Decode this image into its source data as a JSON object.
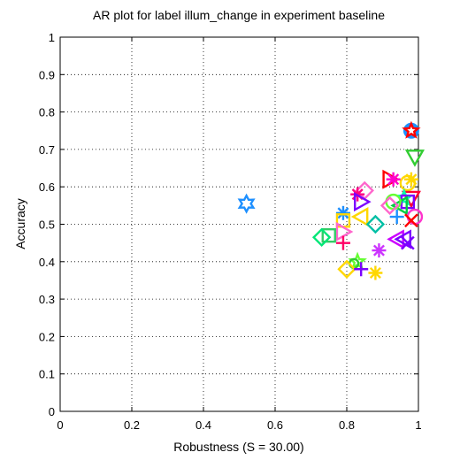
{
  "chart_data": {
    "type": "scatter",
    "title": "AR plot for label illum_change in experiment baseline",
    "xlabel": "Robustness (S = 30.00)",
    "ylabel": "Accuracy",
    "xlim": [
      0,
      1
    ],
    "ylim": [
      0,
      1
    ],
    "x_ticks": [
      "0",
      "0.2",
      "0.4",
      "0.6",
      "0.8",
      "1"
    ],
    "y_ticks": [
      "0",
      "0.1",
      "0.2",
      "0.3",
      "0.4",
      "0.5",
      "0.6",
      "0.7",
      "0.8",
      "0.9",
      "1"
    ],
    "grid": true,
    "points": [
      {
        "x": 0.98,
        "y": 0.75,
        "marker": "circle-thick",
        "color": "#1E90FF"
      },
      {
        "x": 0.98,
        "y": 0.75,
        "marker": "pentagram",
        "color": "#FF0000"
      },
      {
        "x": 0.99,
        "y": 0.68,
        "marker": "triangle-down",
        "color": "#32CD32"
      },
      {
        "x": 0.98,
        "y": 0.62,
        "marker": "asterisk",
        "color": "#FFD700"
      },
      {
        "x": 0.97,
        "y": 0.61,
        "marker": "circle",
        "color": "#FFD700"
      },
      {
        "x": 0.92,
        "y": 0.62,
        "marker": "triangle-right",
        "color": "#FF0000"
      },
      {
        "x": 0.93,
        "y": 0.62,
        "marker": "asterisk",
        "color": "#FF00CC"
      },
      {
        "x": 0.98,
        "y": 0.57,
        "marker": "triangle-down",
        "color": "#FF0033"
      },
      {
        "x": 0.96,
        "y": 0.57,
        "marker": "pentagram",
        "color": "#00FFAA"
      },
      {
        "x": 0.97,
        "y": 0.56,
        "marker": "square",
        "color": "#7B00FF"
      },
      {
        "x": 0.95,
        "y": 0.55,
        "marker": "triangle-left",
        "color": "#00CC44"
      },
      {
        "x": 0.93,
        "y": 0.56,
        "marker": "circle",
        "color": "#66FF33"
      },
      {
        "x": 0.92,
        "y": 0.55,
        "marker": "diamond",
        "color": "#FF66CC"
      },
      {
        "x": 0.99,
        "y": 0.52,
        "marker": "circle",
        "color": "#FF33CC"
      },
      {
        "x": 0.98,
        "y": 0.51,
        "marker": "x",
        "color": "#FF0000"
      },
      {
        "x": 0.94,
        "y": 0.52,
        "marker": "plus",
        "color": "#1E90FF"
      },
      {
        "x": 0.85,
        "y": 0.59,
        "marker": "diamond",
        "color": "#FF66CC"
      },
      {
        "x": 0.83,
        "y": 0.58,
        "marker": "asterisk",
        "color": "#FF0080"
      },
      {
        "x": 0.84,
        "y": 0.56,
        "marker": "triangle-right",
        "color": "#7B00FF"
      },
      {
        "x": 0.84,
        "y": 0.52,
        "marker": "triangle-left",
        "color": "#FFD700"
      },
      {
        "x": 0.79,
        "y": 0.53,
        "marker": "asterisk",
        "color": "#1E90FF"
      },
      {
        "x": 0.79,
        "y": 0.51,
        "marker": "square",
        "color": "#FFD700"
      },
      {
        "x": 0.88,
        "y": 0.5,
        "marker": "diamond",
        "color": "#00BFA5"
      },
      {
        "x": 0.79,
        "y": 0.48,
        "marker": "triangle-right",
        "color": "#FF66CC"
      },
      {
        "x": 0.79,
        "y": 0.45,
        "marker": "plus",
        "color": "#FF0066"
      },
      {
        "x": 0.75,
        "y": 0.47,
        "marker": "square",
        "color": "#33CC66"
      },
      {
        "x": 0.73,
        "y": 0.465,
        "marker": "diamond",
        "color": "#00E676"
      },
      {
        "x": 0.94,
        "y": 0.46,
        "marker": "triangle-left",
        "color": "#CC00FF"
      },
      {
        "x": 0.96,
        "y": 0.46,
        "marker": "triangle-left",
        "color": "#7B00FF"
      },
      {
        "x": 0.97,
        "y": 0.45,
        "marker": "x",
        "color": "#7B00FF"
      },
      {
        "x": 0.89,
        "y": 0.43,
        "marker": "asterisk",
        "color": "#CC33FF"
      },
      {
        "x": 0.83,
        "y": 0.4,
        "marker": "pentagram",
        "color": "#66FF33"
      },
      {
        "x": 0.82,
        "y": 0.395,
        "marker": "circle-small",
        "color": "#33CC33"
      },
      {
        "x": 0.8,
        "y": 0.38,
        "marker": "diamond",
        "color": "#FFD700"
      },
      {
        "x": 0.84,
        "y": 0.38,
        "marker": "plus",
        "color": "#7B00FF"
      },
      {
        "x": 0.88,
        "y": 0.37,
        "marker": "asterisk",
        "color": "#FFD700"
      },
      {
        "x": 0.52,
        "y": 0.555,
        "marker": "hexagram",
        "color": "#1E90FF"
      }
    ]
  }
}
